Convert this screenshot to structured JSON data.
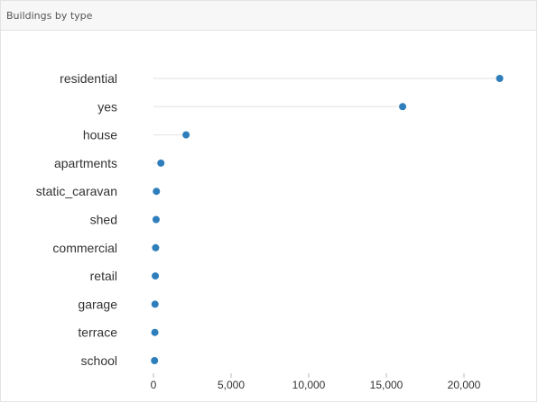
{
  "panel": {
    "title": "Buildings by type"
  },
  "chart_data": {
    "type": "scatter",
    "title": "Buildings by type",
    "categories": [
      "residential",
      "yes",
      "house",
      "apartments",
      "static_caravan",
      "shed",
      "commercial",
      "retail",
      "garage",
      "terrace",
      "school"
    ],
    "values": [
      22300,
      16050,
      2100,
      480,
      190,
      170,
      140,
      120,
      100,
      90,
      70
    ],
    "xlim": [
      0,
      23000
    ],
    "xticks": [
      0,
      5000,
      10000,
      15000,
      20000
    ],
    "xtick_labels": [
      "0",
      "5,000",
      "10,000",
      "15,000",
      "20,000"
    ],
    "grid": false,
    "legend": "none",
    "colors": {
      "dot": "#2f7ebc",
      "stem": "#e2e2e2"
    }
  }
}
